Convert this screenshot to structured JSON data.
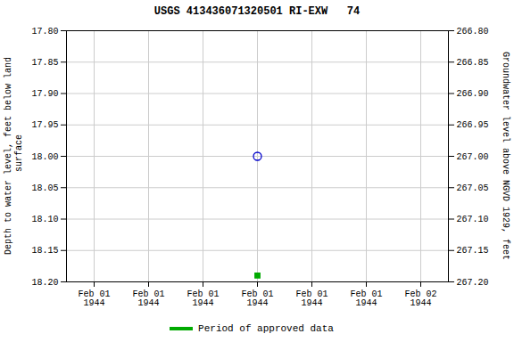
{
  "chart_data": {
    "type": "scatter",
    "title": "USGS 413436071320501 RI-EXW   74",
    "y_label": "Depth to water level, feet below land\n surface",
    "y2_label": "Groundwater level above NGVD 1929, feet",
    "categories": [
      "Feb 01\n1944",
      "Feb 01\n1944",
      "Feb 01\n1944",
      "Feb 01\n1944",
      "Feb 01\n1944",
      "Feb 01\n1944",
      "Feb 02\n1944"
    ],
    "series": [
      {
        "color": "#0000cc",
        "marker": "open_circle",
        "values": [
          null,
          null,
          null,
          18.0,
          null,
          null,
          null
        ]
      },
      {
        "name": "Period of approved data",
        "color": "#00aa00",
        "marker": "square",
        "values": [
          null,
          null,
          null,
          18.19,
          null,
          null,
          null
        ]
      }
    ],
    "ylim": [
      18.2,
      17.8
    ],
    "yticks": [
      {
        "value": 17.8,
        "label": "17.80"
      },
      {
        "value": 17.85,
        "label": "17.85"
      },
      {
        "value": 17.9,
        "label": "17.90"
      },
      {
        "value": 17.95,
        "label": "17.95"
      },
      {
        "value": 18.0,
        "label": "18.00"
      },
      {
        "value": 18.05,
        "label": "18.05"
      },
      {
        "value": 18.1,
        "label": "18.10"
      },
      {
        "value": 18.15,
        "label": "18.15"
      },
      {
        "value": 18.2,
        "label": "18.20"
      }
    ],
    "y2lim": [
      267.2,
      266.8
    ],
    "y2ticks": [
      {
        "value": 267.2,
        "label": "267.20"
      },
      {
        "value": 267.15,
        "label": "267.15"
      },
      {
        "value": 267.1,
        "label": "267.10"
      },
      {
        "value": 267.05,
        "label": "267.05"
      },
      {
        "value": 267.0,
        "label": "267.00"
      },
      {
        "value": 266.95,
        "label": "266.95"
      },
      {
        "value": 266.9,
        "label": "266.90"
      },
      {
        "value": 266.85,
        "label": "266.85"
      },
      {
        "value": 266.8,
        "label": "266.80"
      }
    ],
    "grid": true,
    "legend": "bottom"
  }
}
